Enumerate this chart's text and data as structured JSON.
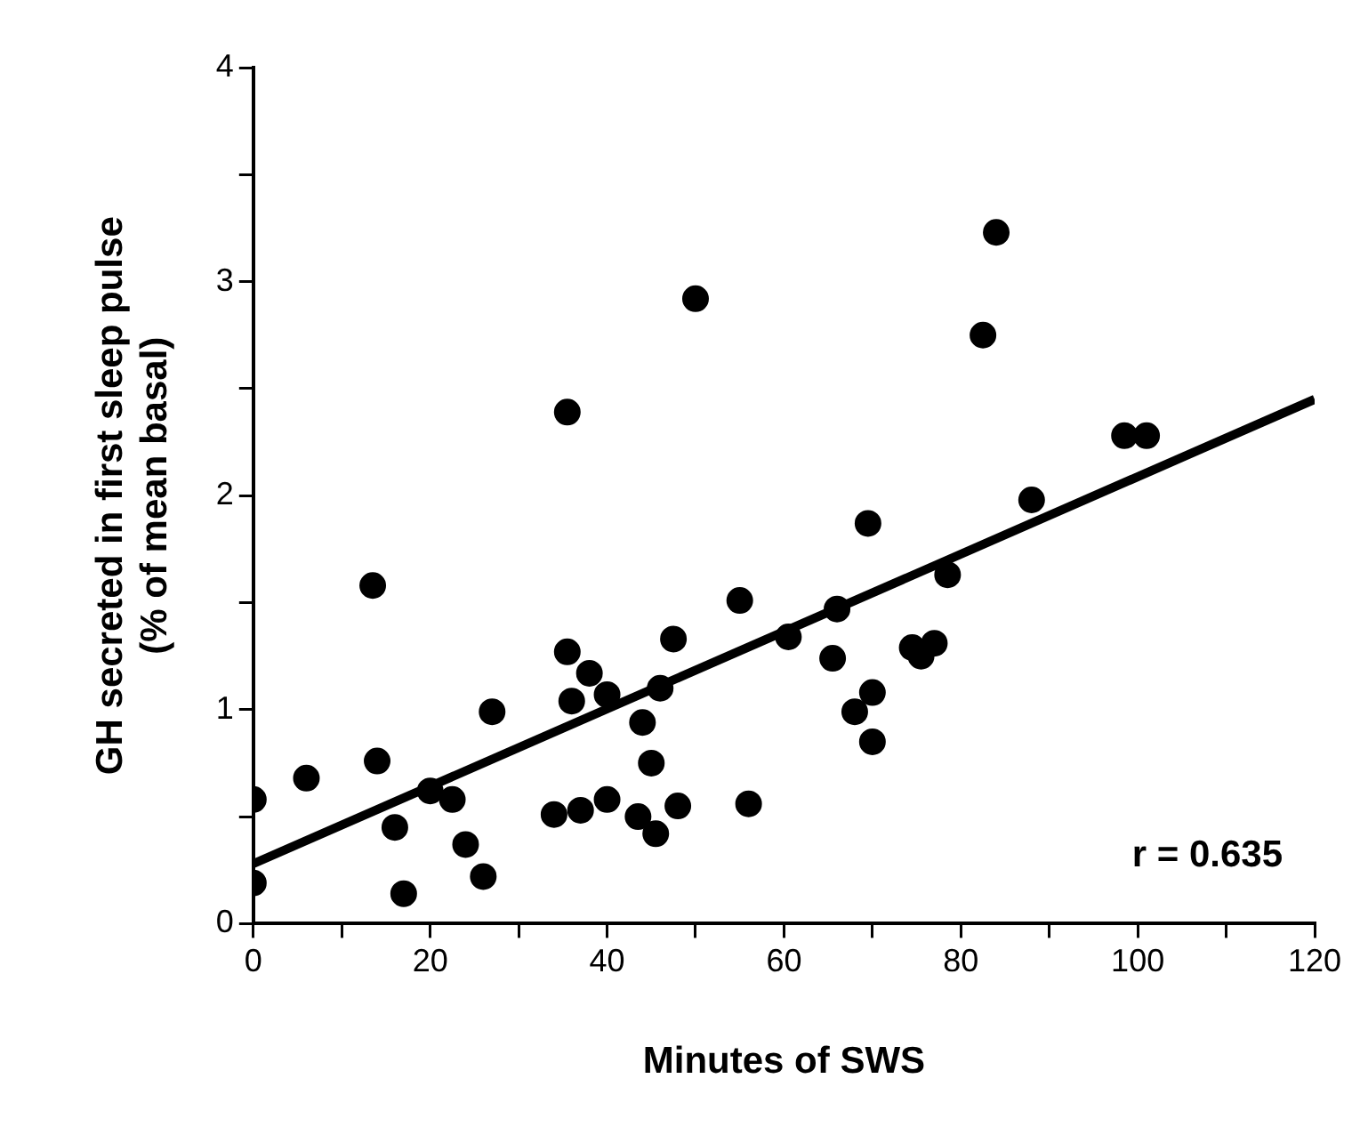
{
  "chart_data": {
    "type": "scatter",
    "xlabel": "Minutes of SWS",
    "ylabel": "GH secreted in first sleep pulse\n(% of mean basal)",
    "xlim": [
      0,
      120
    ],
    "ylim": [
      0,
      4
    ],
    "xticks": [
      0,
      {
        "value": 10,
        "label": null
      },
      20,
      {
        "value": 30,
        "label": null
      },
      40,
      {
        "value": 50,
        "label": null
      },
      60,
      {
        "value": 70,
        "label": null
      },
      80,
      {
        "value": 90,
        "label": null
      },
      100,
      {
        "value": 110,
        "label": null
      },
      120
    ],
    "yticks": [
      0,
      {
        "value": 0.5,
        "label": null
      },
      1,
      {
        "value": 1.5,
        "label": null
      },
      2,
      {
        "value": 2.5,
        "label": null
      },
      3,
      {
        "value": 3.5,
        "label": null
      },
      4
    ],
    "grid": false,
    "legend": false,
    "marker": "circle",
    "annotations": [
      "r = 0.635"
    ],
    "series": [
      {
        "type": "scatter",
        "color": "#000000",
        "x": [
          0,
          0,
          6,
          13.5,
          14,
          16,
          17,
          20,
          22.5,
          24,
          26,
          27,
          34,
          35.5,
          35.5,
          36,
          37,
          38,
          40,
          40,
          43.5,
          44,
          45,
          45.5,
          46,
          48,
          47.5,
          50,
          55,
          56,
          60.5,
          65.5,
          66,
          68,
          69.5,
          70,
          70,
          74.5,
          75.5,
          77,
          78.5,
          82.5,
          84,
          88,
          98.5,
          101
        ],
        "values": [
          0.58,
          0.19,
          0.68,
          1.58,
          0.76,
          0.45,
          0.14,
          0.62,
          0.58,
          0.37,
          0.22,
          0.99,
          0.51,
          2.39,
          1.27,
          1.04,
          0.53,
          1.17,
          0.58,
          1.07,
          0.5,
          0.94,
          0.75,
          0.42,
          1.1,
          0.55,
          1.33,
          2.92,
          1.51,
          0.56,
          1.34,
          1.24,
          1.47,
          0.99,
          1.87,
          1.08,
          0.85,
          1.29,
          1.25,
          1.31,
          1.63,
          2.75,
          3.23,
          1.98,
          2.28,
          2.28
        ]
      },
      {
        "type": "line",
        "color": "#000000",
        "marker": "none",
        "x": [
          0,
          120
        ],
        "values": [
          0.28,
          2.45
        ]
      }
    ]
  }
}
